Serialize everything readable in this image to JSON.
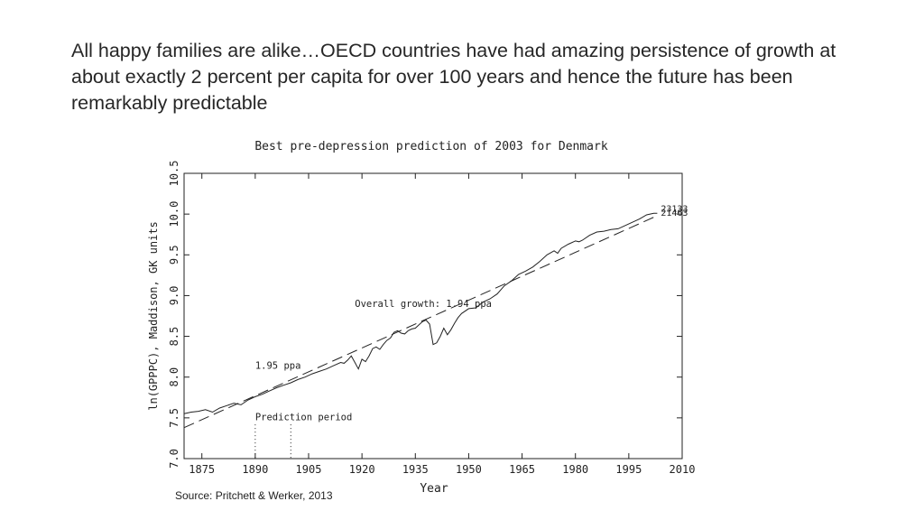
{
  "slide": {
    "title": "All happy families are alike…OECD countries have had amazing persistence of growth at about exactly 2 percent per capita for over 100 years and hence the future has been remarkably predictable",
    "source": "Source:  Pritchett & Werker,  2013"
  },
  "chart_data": {
    "type": "line",
    "title": "Best pre-depression prediction of 2003 for Denmark",
    "xlabel": "Year",
    "ylabel": "ln(GPPPC), Maddison, GK units",
    "xlim": [
      1870,
      2010
    ],
    "ylim": [
      7.0,
      10.5
    ],
    "xticks": [
      1875,
      1890,
      1905,
      1920,
      1935,
      1950,
      1965,
      1980,
      1995,
      2010
    ],
    "yticks": [
      "7.0",
      "7.5",
      "8.0",
      "8.5",
      "9.0",
      "9.5",
      "10.0",
      "10.5"
    ],
    "grid": false,
    "series": [
      {
        "style": "solid",
        "x": [
          1870,
          1872,
          1874,
          1876,
          1878,
          1880,
          1882,
          1884,
          1886,
          1888,
          1890,
          1892,
          1894,
          1896,
          1898,
          1900,
          1902,
          1904,
          1906,
          1908,
          1910,
          1912,
          1914,
          1915,
          1916,
          1917,
          1918,
          1919,
          1920,
          1921,
          1922,
          1923,
          1924,
          1925,
          1926,
          1927,
          1928,
          1929,
          1930,
          1931,
          1932,
          1933,
          1934,
          1935,
          1936,
          1937,
          1938,
          1939,
          1940,
          1941,
          1942,
          1943,
          1944,
          1945,
          1946,
          1947,
          1948,
          1950,
          1952,
          1954,
          1956,
          1958,
          1960,
          1962,
          1964,
          1966,
          1968,
          1970,
          1972,
          1974,
          1975,
          1976,
          1978,
          1980,
          1981,
          1982,
          1984,
          1986,
          1988,
          1990,
          1992,
          1994,
          1996,
          1998,
          2000,
          2001,
          2002,
          2003
        ],
        "y": [
          7.55,
          7.57,
          7.58,
          7.6,
          7.57,
          7.62,
          7.65,
          7.68,
          7.66,
          7.72,
          7.76,
          7.79,
          7.83,
          7.87,
          7.9,
          7.93,
          7.97,
          8.0,
          8.04,
          8.07,
          8.1,
          8.14,
          8.18,
          8.17,
          8.21,
          8.26,
          8.18,
          8.1,
          8.22,
          8.19,
          8.26,
          8.35,
          8.37,
          8.34,
          8.4,
          8.45,
          8.48,
          8.55,
          8.57,
          8.54,
          8.53,
          8.57,
          8.59,
          8.6,
          8.64,
          8.68,
          8.7,
          8.65,
          8.4,
          8.42,
          8.5,
          8.6,
          8.52,
          8.58,
          8.66,
          8.73,
          8.78,
          8.84,
          8.85,
          8.92,
          8.96,
          9.02,
          9.12,
          9.18,
          9.26,
          9.3,
          9.35,
          9.42,
          9.5,
          9.55,
          9.52,
          9.58,
          9.63,
          9.67,
          9.66,
          9.68,
          9.74,
          9.78,
          9.79,
          9.81,
          9.82,
          9.86,
          9.9,
          9.94,
          9.99,
          10.0,
          10.01,
          10.01
        ]
      },
      {
        "style": "dashed",
        "x": [
          1870,
          2003
        ],
        "y": [
          7.38,
          9.98
        ]
      }
    ],
    "annotations": [
      {
        "text": "Overall growth: 1.94 ppa",
        "x": 1918,
        "y": 8.86
      },
      {
        "text": "1.95 ppa",
        "x": 1890,
        "y": 8.1
      },
      {
        "text": "Prediction period",
        "x": 1890,
        "y": 7.47
      },
      {
        "text": "23133",
        "x": 2004,
        "y": 10.03
      },
      {
        "text": "21463",
        "x": 2004,
        "y": 9.98
      }
    ],
    "prediction_period": [
      1890,
      1900
    ]
  }
}
